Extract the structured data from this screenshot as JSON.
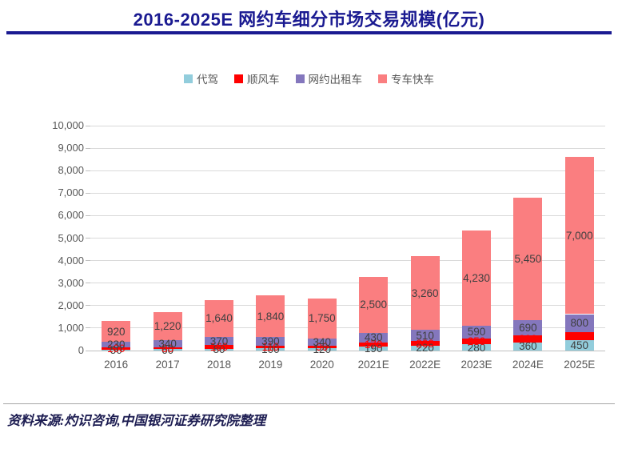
{
  "header": {
    "title": "2016-2025E 网约车细分市场交易规模(亿元)"
  },
  "footer": {
    "source_note": "资料来源:灼识咨询,中国银河证券研究院整理"
  },
  "colors": {
    "title_navy": "#1a1a91",
    "axis_text_gray": "#595959",
    "gridline_gray": "#d9d9d9",
    "data_label_gray": "#404040",
    "separator_gray": "#a6a6a6"
  },
  "chart_data": {
    "type": "bar",
    "stacked": true,
    "title": "2016-2025E 网约车细分市场交易规模(亿元)",
    "unit": "亿元",
    "grid": true,
    "legend_position": "top",
    "ylim": [
      0,
      10000
    ],
    "ytick_step": 1000,
    "ytick_labels": [
      "0",
      "1,000",
      "2,000",
      "3,000",
      "4,000",
      "5,000",
      "6,000",
      "7,000",
      "8,000",
      "9,000",
      "10,000"
    ],
    "categories": [
      "2016",
      "2017",
      "2018",
      "2019",
      "2020",
      "2021E",
      "2022E",
      "2023E",
      "2024E",
      "2025E"
    ],
    "series": [
      {
        "name": "代驾",
        "color": "#92cddc",
        "label_color": "#404040",
        "values": [
          50,
          60,
          80,
          100,
          120,
          190,
          220,
          280,
          360,
          450
        ]
      },
      {
        "name": "顺风车",
        "color": "#ff0000",
        "label_color": "#ff0000",
        "values": [
          100,
          80,
          160,
          110,
          90,
          170,
          200,
          250,
          300,
          370
        ]
      },
      {
        "name": "网约出租车",
        "color": "#8477bd",
        "label_color": "#404040",
        "values": [
          230,
          340,
          370,
          390,
          340,
          430,
          510,
          590,
          690,
          800
        ]
      },
      {
        "name": "专车快车",
        "color": "#fa7e80",
        "label_color": "#404040",
        "values": [
          920,
          1220,
          1640,
          1840,
          1750,
          2500,
          3260,
          4230,
          5450,
          7000
        ]
      }
    ],
    "totals": [
      1300,
      1700,
      2250,
      2440,
      2300,
      3290,
      4190,
      5350,
      6800,
      8620
    ]
  }
}
